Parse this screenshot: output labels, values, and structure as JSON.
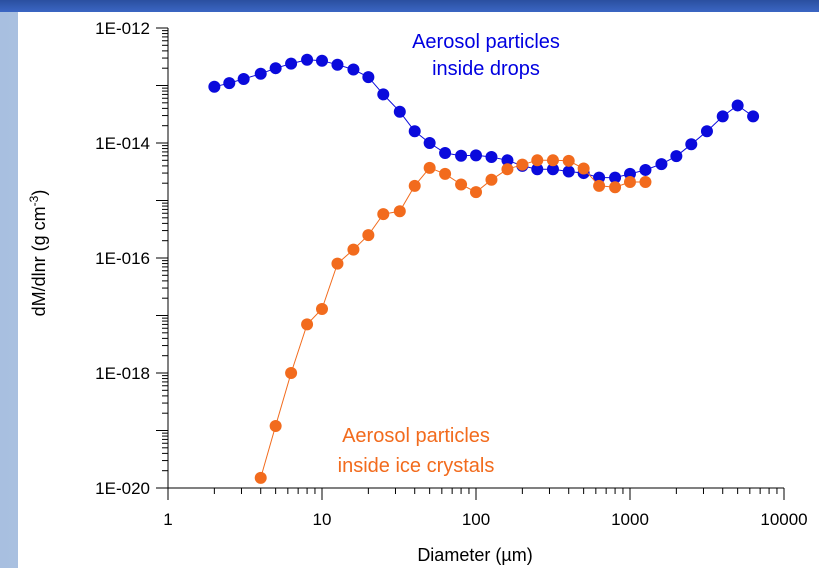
{
  "chart_data": {
    "type": "scatter",
    "title": "",
    "xlabel": "Diameter (µm)",
    "ylabel_main": "dM/dlnr (g cm",
    "ylabel_sup": "-3",
    "ylabel_close": ")",
    "x_scale": "log",
    "y_scale": "log",
    "xlim": [
      1,
      10000
    ],
    "ylim": [
      1e-20,
      1e-12
    ],
    "x_ticks": [
      {
        "value": 1,
        "label": "1"
      },
      {
        "value": 10,
        "label": "10"
      },
      {
        "value": 100,
        "label": "100"
      },
      {
        "value": 1000,
        "label": "1000"
      },
      {
        "value": 10000,
        "label": "10000"
      }
    ],
    "y_ticks": [
      {
        "value": 1e-20,
        "label": "1E-020"
      },
      {
        "value": 1e-18,
        "label": "1E-018"
      },
      {
        "value": 1e-16,
        "label": "1E-016"
      },
      {
        "value": 1e-14,
        "label": "1E-014"
      },
      {
        "value": 1e-12,
        "label": "1E-012"
      }
    ],
    "grid": false,
    "series": [
      {
        "name_lines": [
          "Aerosol particles",
          "inside drops"
        ],
        "color": "#0a0adc",
        "x": [
          2,
          2.5,
          3.1,
          4,
          5,
          6.3,
          8,
          10,
          12.6,
          16,
          20,
          25,
          32,
          40,
          50,
          63,
          80,
          100,
          126,
          160,
          200,
          250,
          316,
          400,
          500,
          630,
          800,
          1000,
          1260,
          1600,
          2000,
          2500,
          3160,
          4000,
          5000,
          6300
        ],
        "y": [
          9.5e-14,
          1.1e-13,
          1.3e-13,
          1.6e-13,
          2e-13,
          2.4e-13,
          2.8e-13,
          2.7e-13,
          2.3e-13,
          1.9e-13,
          1.4e-13,
          7e-14,
          3.5e-14,
          1.6e-14,
          1e-14,
          6.7e-15,
          6e-15,
          6.1e-15,
          5.7e-15,
          5e-15,
          4e-15,
          3.5e-15,
          3.5e-15,
          3.2e-15,
          3e-15,
          2.5e-15,
          2.5e-15,
          2.9e-15,
          3.4e-15,
          4.3e-15,
          5.9e-15,
          9.5e-15,
          1.6e-14,
          2.9e-14,
          4.5e-14,
          2.9e-14
        ]
      },
      {
        "name_lines": [
          "Aerosol particles",
          "inside ice crystals"
        ],
        "color": "#f26b1d",
        "x": [
          4,
          5,
          6.3,
          8,
          10,
          12.6,
          16,
          20,
          25,
          32,
          40,
          50,
          63,
          80,
          100,
          126,
          160,
          200,
          250,
          316,
          400,
          500,
          630,
          800,
          1000,
          1260
        ],
        "y": [
          1.5e-20,
          1.2e-19,
          1e-18,
          7e-18,
          1.3e-17,
          8e-17,
          1.4e-16,
          2.5e-16,
          5.8e-16,
          6.5e-16,
          1.8e-15,
          3.7e-15,
          2.9e-15,
          1.9e-15,
          1.4e-15,
          2.3e-15,
          3.5e-15,
          4.2e-15,
          5e-15,
          5e-15,
          4.9e-15,
          3.6e-15,
          1.8e-15,
          1.7e-15,
          2.1e-15,
          2.1e-15
        ]
      }
    ]
  }
}
